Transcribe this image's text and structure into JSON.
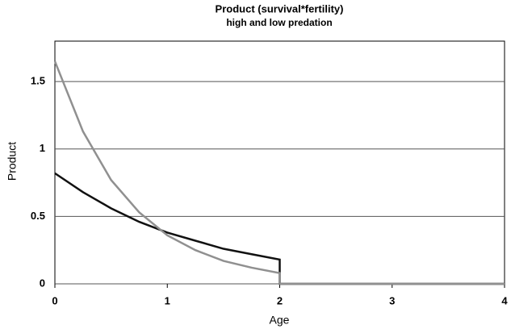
{
  "chart_data": {
    "type": "line",
    "title": "Product (survival*fertility)",
    "subtitle": "high and low predation",
    "xlabel": "Age",
    "ylabel": "Product",
    "x": [
      0,
      0.25,
      0.5,
      0.75,
      1,
      1.25,
      1.5,
      1.75,
      2,
      2,
      4
    ],
    "series": [
      {
        "color": "#111111",
        "values": [
          0.82,
          0.68,
          0.56,
          0.46,
          0.38,
          0.32,
          0.26,
          0.22,
          0.18,
          0,
          0
        ]
      },
      {
        "color": "#909090",
        "values": [
          1.65,
          1.13,
          0.77,
          0.53,
          0.36,
          0.25,
          0.17,
          0.12,
          0.08,
          0,
          0
        ]
      }
    ],
    "xlim": [
      0,
      4
    ],
    "xticks": [
      0,
      1,
      2,
      3,
      4
    ],
    "ylim": [
      0,
      1.8
    ],
    "yticks": [
      0,
      0.5,
      1,
      1.5
    ],
    "grid": true
  }
}
